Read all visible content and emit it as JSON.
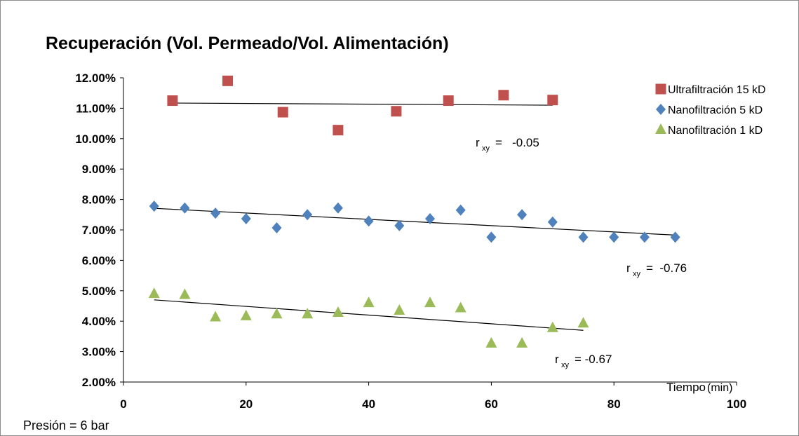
{
  "chart_data": {
    "type": "scatter",
    "title": "Recuperación (Vol. Permeado/Vol. Alimentación)",
    "x_axis_label_main": "Tiempo",
    "x_axis_label_unit": "(min)",
    "note": "Presión = 6 bar",
    "xlim": [
      0,
      100
    ],
    "ylim": [
      2.0,
      12.0
    ],
    "x_ticks": [
      "0",
      "20",
      "40",
      "60",
      "80",
      "100"
    ],
    "y_ticks": [
      "2.00%",
      "3.00%",
      "4.00%",
      "5.00%",
      "6.00%",
      "7.00%",
      "8.00%",
      "9.00%",
      "10.00%",
      "11.00%",
      "12.00%"
    ],
    "legend_position": "top-right",
    "series": [
      {
        "name": "Ultrafiltración 15 kD",
        "marker": "square",
        "color": "#c0504d",
        "x": [
          8,
          17,
          26,
          35,
          44.5,
          53,
          62,
          70
        ],
        "y": [
          11.25,
          11.9,
          10.87,
          10.28,
          10.9,
          11.25,
          11.43,
          11.27
        ],
        "trend": {
          "x": [
            8,
            70
          ],
          "y": [
            11.17,
            11.1
          ]
        },
        "r_label": "r",
        "r_sub": "xy",
        "r_value": "=   -0.05"
      },
      {
        "name": "Nanofiltración 5 kD",
        "marker": "diamond",
        "color": "#4f81bd",
        "x": [
          5,
          10,
          15,
          20,
          25,
          30,
          35,
          40,
          45,
          50,
          55,
          60,
          65,
          70,
          75,
          80,
          85,
          90
        ],
        "y": [
          7.78,
          7.72,
          7.55,
          7.37,
          7.07,
          7.5,
          7.72,
          7.29,
          7.14,
          7.37,
          7.65,
          6.76,
          7.5,
          7.26,
          6.76,
          6.76,
          6.76,
          6.76
        ],
        "trend": {
          "x": [
            5,
            90
          ],
          "y": [
            7.71,
            6.83
          ]
        },
        "r_label": "r",
        "r_sub": "xy",
        "r_value": "=  -0.76"
      },
      {
        "name": "Nanofiltración 1 kD",
        "marker": "triangle",
        "color": "#9bbb59",
        "x": [
          5,
          10,
          15,
          20,
          25,
          30,
          35,
          40,
          45,
          50,
          55,
          60,
          65,
          70,
          75
        ],
        "y": [
          4.9,
          4.87,
          4.13,
          4.17,
          4.23,
          4.23,
          4.28,
          4.6,
          4.35,
          4.6,
          4.43,
          3.27,
          3.27,
          3.78,
          3.93
        ],
        "trend": {
          "x": [
            5,
            75
          ],
          "y": [
            4.7,
            3.7
          ]
        },
        "r_label": "r",
        "r_sub": "xy",
        "r_value": "= -0.67"
      }
    ]
  }
}
